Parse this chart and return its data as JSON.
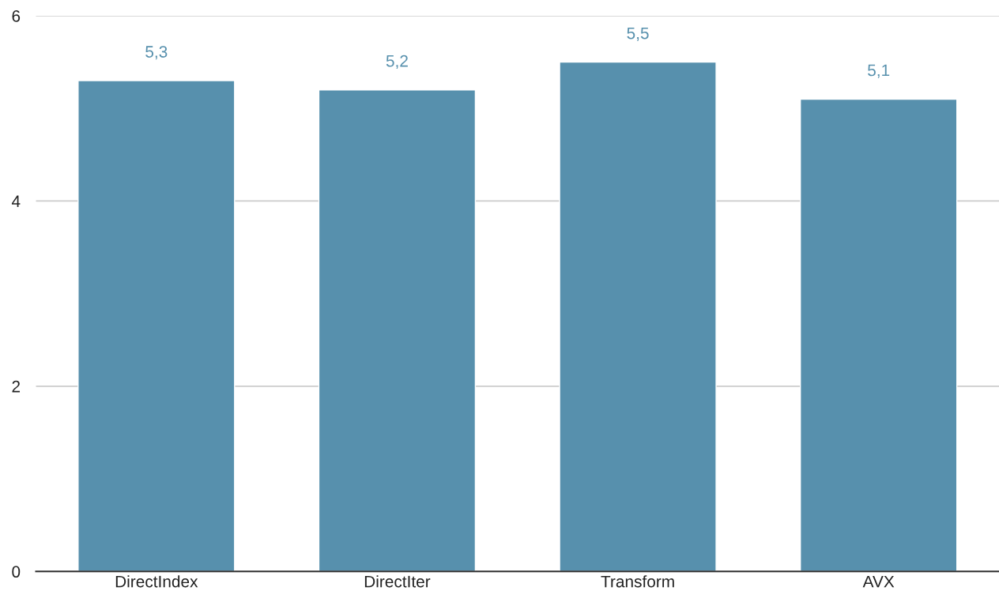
{
  "chart_data": {
    "type": "bar",
    "categories": [
      "DirectIndex",
      "DirectIter",
      "Transform",
      "AVX"
    ],
    "values": [
      5.3,
      5.2,
      5.5,
      5.1
    ],
    "value_labels": [
      "5,3",
      "5,2",
      "5,5",
      "5,1"
    ],
    "color": "#5790ad",
    "ylim": [
      0,
      6
    ],
    "yticks": [
      0,
      2,
      4,
      6
    ],
    "grid": "y"
  }
}
